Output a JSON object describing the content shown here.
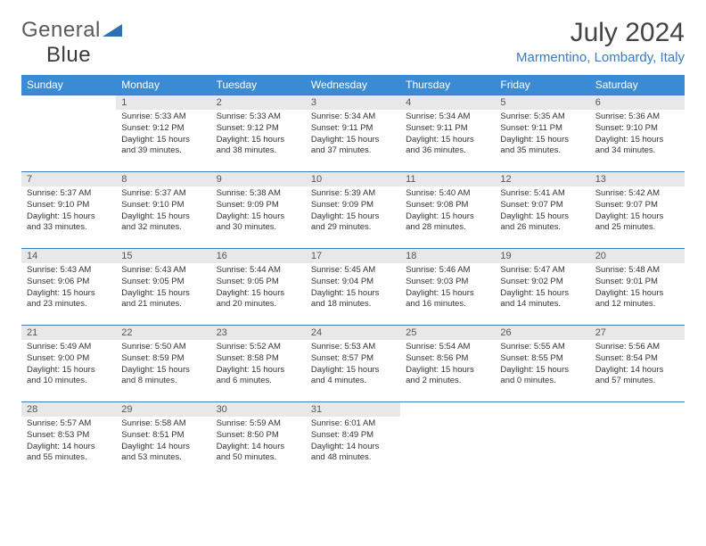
{
  "logo": {
    "text1": "General",
    "text2": "Blue"
  },
  "title": "July 2024",
  "location": "Marmentino, Lombardy, Italy",
  "colors": {
    "header_bg": "#3b8bd4",
    "header_text": "#ffffff",
    "accent": "#3b7bbf",
    "daynum_bg": "#e8e8e8",
    "text": "#333333",
    "background": "#ffffff"
  },
  "typography": {
    "title_fontsize": 30,
    "location_fontsize": 15,
    "day_header_fontsize": 12,
    "daynum_fontsize": 11,
    "content_fontsize": 9.5
  },
  "day_headers": [
    "Sunday",
    "Monday",
    "Tuesday",
    "Wednesday",
    "Thursday",
    "Friday",
    "Saturday"
  ],
  "weeks": [
    [
      {
        "num": "",
        "sunrise": "",
        "sunset": "",
        "daylight": ""
      },
      {
        "num": "1",
        "sunrise": "Sunrise: 5:33 AM",
        "sunset": "Sunset: 9:12 PM",
        "daylight": "Daylight: 15 hours and 39 minutes."
      },
      {
        "num": "2",
        "sunrise": "Sunrise: 5:33 AM",
        "sunset": "Sunset: 9:12 PM",
        "daylight": "Daylight: 15 hours and 38 minutes."
      },
      {
        "num": "3",
        "sunrise": "Sunrise: 5:34 AM",
        "sunset": "Sunset: 9:11 PM",
        "daylight": "Daylight: 15 hours and 37 minutes."
      },
      {
        "num": "4",
        "sunrise": "Sunrise: 5:34 AM",
        "sunset": "Sunset: 9:11 PM",
        "daylight": "Daylight: 15 hours and 36 minutes."
      },
      {
        "num": "5",
        "sunrise": "Sunrise: 5:35 AM",
        "sunset": "Sunset: 9:11 PM",
        "daylight": "Daylight: 15 hours and 35 minutes."
      },
      {
        "num": "6",
        "sunrise": "Sunrise: 5:36 AM",
        "sunset": "Sunset: 9:10 PM",
        "daylight": "Daylight: 15 hours and 34 minutes."
      }
    ],
    [
      {
        "num": "7",
        "sunrise": "Sunrise: 5:37 AM",
        "sunset": "Sunset: 9:10 PM",
        "daylight": "Daylight: 15 hours and 33 minutes."
      },
      {
        "num": "8",
        "sunrise": "Sunrise: 5:37 AM",
        "sunset": "Sunset: 9:10 PM",
        "daylight": "Daylight: 15 hours and 32 minutes."
      },
      {
        "num": "9",
        "sunrise": "Sunrise: 5:38 AM",
        "sunset": "Sunset: 9:09 PM",
        "daylight": "Daylight: 15 hours and 30 minutes."
      },
      {
        "num": "10",
        "sunrise": "Sunrise: 5:39 AM",
        "sunset": "Sunset: 9:09 PM",
        "daylight": "Daylight: 15 hours and 29 minutes."
      },
      {
        "num": "11",
        "sunrise": "Sunrise: 5:40 AM",
        "sunset": "Sunset: 9:08 PM",
        "daylight": "Daylight: 15 hours and 28 minutes."
      },
      {
        "num": "12",
        "sunrise": "Sunrise: 5:41 AM",
        "sunset": "Sunset: 9:07 PM",
        "daylight": "Daylight: 15 hours and 26 minutes."
      },
      {
        "num": "13",
        "sunrise": "Sunrise: 5:42 AM",
        "sunset": "Sunset: 9:07 PM",
        "daylight": "Daylight: 15 hours and 25 minutes."
      }
    ],
    [
      {
        "num": "14",
        "sunrise": "Sunrise: 5:43 AM",
        "sunset": "Sunset: 9:06 PM",
        "daylight": "Daylight: 15 hours and 23 minutes."
      },
      {
        "num": "15",
        "sunrise": "Sunrise: 5:43 AM",
        "sunset": "Sunset: 9:05 PM",
        "daylight": "Daylight: 15 hours and 21 minutes."
      },
      {
        "num": "16",
        "sunrise": "Sunrise: 5:44 AM",
        "sunset": "Sunset: 9:05 PM",
        "daylight": "Daylight: 15 hours and 20 minutes."
      },
      {
        "num": "17",
        "sunrise": "Sunrise: 5:45 AM",
        "sunset": "Sunset: 9:04 PM",
        "daylight": "Daylight: 15 hours and 18 minutes."
      },
      {
        "num": "18",
        "sunrise": "Sunrise: 5:46 AM",
        "sunset": "Sunset: 9:03 PM",
        "daylight": "Daylight: 15 hours and 16 minutes."
      },
      {
        "num": "19",
        "sunrise": "Sunrise: 5:47 AM",
        "sunset": "Sunset: 9:02 PM",
        "daylight": "Daylight: 15 hours and 14 minutes."
      },
      {
        "num": "20",
        "sunrise": "Sunrise: 5:48 AM",
        "sunset": "Sunset: 9:01 PM",
        "daylight": "Daylight: 15 hours and 12 minutes."
      }
    ],
    [
      {
        "num": "21",
        "sunrise": "Sunrise: 5:49 AM",
        "sunset": "Sunset: 9:00 PM",
        "daylight": "Daylight: 15 hours and 10 minutes."
      },
      {
        "num": "22",
        "sunrise": "Sunrise: 5:50 AM",
        "sunset": "Sunset: 8:59 PM",
        "daylight": "Daylight: 15 hours and 8 minutes."
      },
      {
        "num": "23",
        "sunrise": "Sunrise: 5:52 AM",
        "sunset": "Sunset: 8:58 PM",
        "daylight": "Daylight: 15 hours and 6 minutes."
      },
      {
        "num": "24",
        "sunrise": "Sunrise: 5:53 AM",
        "sunset": "Sunset: 8:57 PM",
        "daylight": "Daylight: 15 hours and 4 minutes."
      },
      {
        "num": "25",
        "sunrise": "Sunrise: 5:54 AM",
        "sunset": "Sunset: 8:56 PM",
        "daylight": "Daylight: 15 hours and 2 minutes."
      },
      {
        "num": "26",
        "sunrise": "Sunrise: 5:55 AM",
        "sunset": "Sunset: 8:55 PM",
        "daylight": "Daylight: 15 hours and 0 minutes."
      },
      {
        "num": "27",
        "sunrise": "Sunrise: 5:56 AM",
        "sunset": "Sunset: 8:54 PM",
        "daylight": "Daylight: 14 hours and 57 minutes."
      }
    ],
    [
      {
        "num": "28",
        "sunrise": "Sunrise: 5:57 AM",
        "sunset": "Sunset: 8:53 PM",
        "daylight": "Daylight: 14 hours and 55 minutes."
      },
      {
        "num": "29",
        "sunrise": "Sunrise: 5:58 AM",
        "sunset": "Sunset: 8:51 PM",
        "daylight": "Daylight: 14 hours and 53 minutes."
      },
      {
        "num": "30",
        "sunrise": "Sunrise: 5:59 AM",
        "sunset": "Sunset: 8:50 PM",
        "daylight": "Daylight: 14 hours and 50 minutes."
      },
      {
        "num": "31",
        "sunrise": "Sunrise: 6:01 AM",
        "sunset": "Sunset: 8:49 PM",
        "daylight": "Daylight: 14 hours and 48 minutes."
      },
      {
        "num": "",
        "sunrise": "",
        "sunset": "",
        "daylight": ""
      },
      {
        "num": "",
        "sunrise": "",
        "sunset": "",
        "daylight": ""
      },
      {
        "num": "",
        "sunrise": "",
        "sunset": "",
        "daylight": ""
      }
    ]
  ]
}
